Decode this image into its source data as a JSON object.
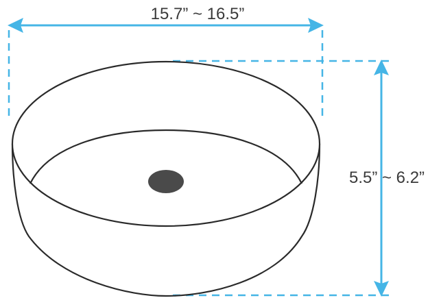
{
  "dimensions": {
    "width_label": "15.7” ~ 16.5”",
    "height_label": "5.5” ~ 6.2”"
  },
  "colors": {
    "dimension_line": "#45b5e6",
    "outline": "#2a2a2a",
    "drain": "#4a4a4a",
    "background": "#ffffff"
  }
}
